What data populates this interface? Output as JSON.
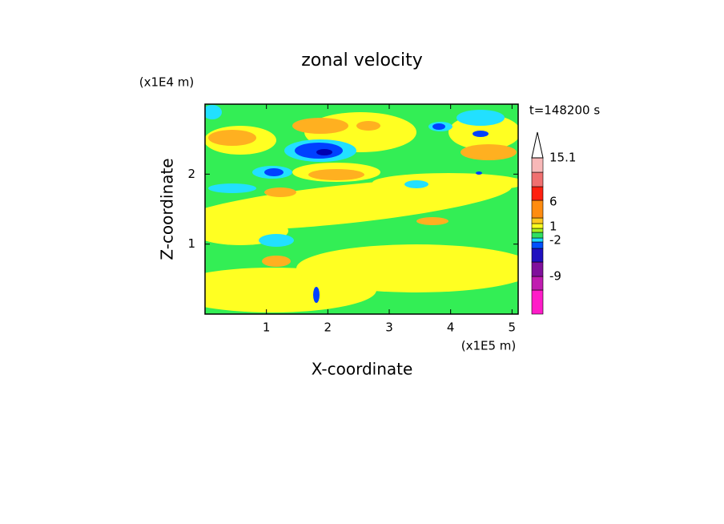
{
  "chart_data": {
    "type": "contour",
    "title": "zonal velocity",
    "x_label": "X-coordinate",
    "y_label": "Z-coordinate",
    "x_unit": "(x1E5 m)",
    "y_unit": "(x1E4 m)",
    "time_label": "t=148200 s",
    "xlim": [
      0,
      5.1
    ],
    "xticks": [
      1,
      2,
      3,
      4,
      5
    ],
    "ylim": [
      0,
      3
    ],
    "yticks": [
      1,
      2
    ],
    "colorbar": {
      "colors": [
        "#ff1cc8",
        "#c01cb0",
        "#80109c",
        "#2010c0",
        "#0050ff",
        "#20d8ff",
        "#30e060",
        "#a8f020",
        "#ffff20",
        "#ffc820",
        "#ff8c10",
        "#ff2010",
        "#f07070",
        "#f8b8b8"
      ],
      "labels": [
        15.1,
        6,
        1,
        -2,
        -9
      ]
    }
  }
}
